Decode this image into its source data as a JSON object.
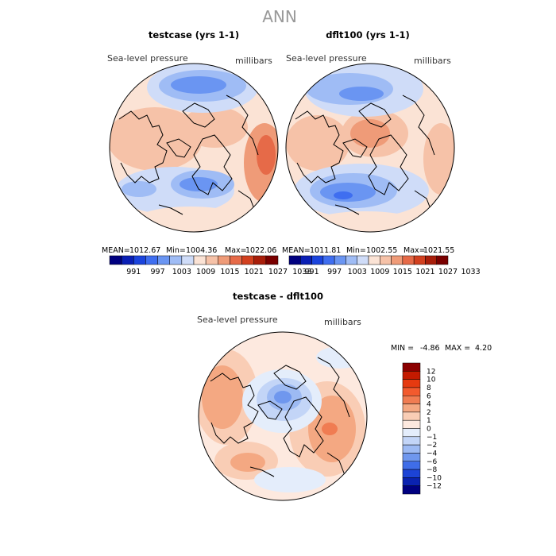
{
  "page_title": "ANN",
  "chart_data": [
    {
      "type": "heatmap",
      "title": "testcase (yrs 1-1)",
      "variable": "Sea-level pressure",
      "units": "millibars",
      "stats": {
        "mean_label": "MEAN=",
        "mean": "1012.67",
        "min_label": "Min=",
        "min": "1004.36",
        "max_label": "Max=",
        "max": "1022.06"
      },
      "colorbar": {
        "levels": [
          991,
          997,
          1003,
          1009,
          1015,
          1021,
          1027,
          1033
        ],
        "labels": [
          "991",
          "997",
          "1003",
          "1009",
          "1015",
          "1021",
          "1027",
          "1033"
        ],
        "colors": [
          "#000080",
          "#0a1fb5",
          "#1b44dd",
          "#3f6ef0",
          "#6a95f2",
          "#9fbcf5",
          "#cfdcf8",
          "#fbe3d5",
          "#f6c2a8",
          "#ef9b78",
          "#e66a48",
          "#d2401f",
          "#a81e0a",
          "#7a0000"
        ]
      }
    },
    {
      "type": "heatmap",
      "title": "dflt100 (yrs 1-1)",
      "variable": "Sea-level pressure",
      "units": "millibars",
      "stats": {
        "mean_label": "MEAN=",
        "mean": "1011.81",
        "min_label": "Min=",
        "min": "1002.55",
        "max_label": "Max=",
        "max": "1021.55"
      },
      "colorbar": {
        "levels": [
          991,
          997,
          1003,
          1009,
          1015,
          1021,
          1027,
          1033
        ],
        "labels": [
          "991",
          "997",
          "1003",
          "1009",
          "1015",
          "1021",
          "1027",
          "1033"
        ],
        "colors": [
          "#000080",
          "#0a1fb5",
          "#1b44dd",
          "#3f6ef0",
          "#6a95f2",
          "#9fbcf5",
          "#cfdcf8",
          "#fbe3d5",
          "#f6c2a8",
          "#ef9b78",
          "#e66a48",
          "#d2401f",
          "#a81e0a",
          "#7a0000"
        ]
      }
    },
    {
      "type": "heatmap",
      "title": "testcase - dflt100",
      "variable": "Sea-level pressure",
      "units": "millibars",
      "stats": {
        "min_label": "MIN =",
        "min": "-4.86",
        "max_label": "MAX =",
        "max": "4.20"
      },
      "colorbar": {
        "orientation": "vertical",
        "labels": [
          "12",
          "10",
          "8",
          "6",
          "4",
          "2",
          "1",
          "0",
          "−1",
          "−2",
          "−4",
          "−6",
          "−8",
          "−10",
          "−12"
        ],
        "colors": [
          "#8b0000",
          "#c41a00",
          "#e63a10",
          "#f25a2e",
          "#f07c52",
          "#f4a882",
          "#f9cdb5",
          "#fde9df",
          "#e4edfb",
          "#c3d5f7",
          "#9dbaf3",
          "#6f97ee",
          "#3f6de8",
          "#1c43d6",
          "#0a22b0",
          "#000080"
        ]
      }
    }
  ]
}
